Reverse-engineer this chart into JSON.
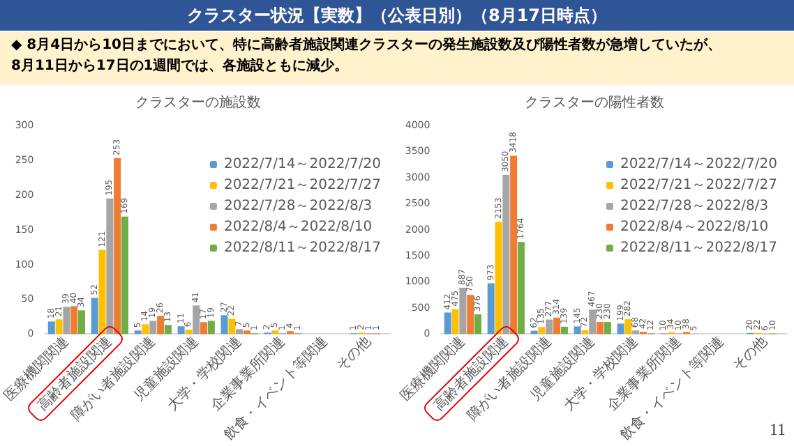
{
  "chart_data": [
    {
      "type": "other",
      "title": "クラスター状況【実数】（公表日別）（8月17日時点）",
      "annotations": [
        "◆ 8月4日から10日までにおいて、特に高齢者施設関連クラスターの発生施設数及び陽性者数が急増していたが、\n8月11日から17日の1週間では、各施設ともに減少。",
        "11"
      ]
    },
    {
      "type": "bar",
      "title": "クラスターの施設数",
      "categories": [
        "医療機関関連",
        "高齢者施設関連",
        "障がい者施設関連",
        "児童施設関連",
        "大学・学校関連",
        "企業事業所関連",
        "飲食・イベント等関連",
        "その他"
      ],
      "series": [
        {
          "name": "2022/7/14～2022/7/20",
          "color": "#5b9bd5",
          "values": [
            18,
            52,
            5,
            11,
            27,
            2,
            null,
            1
          ]
        },
        {
          "name": "2022/7/21～2022/7/27",
          "color": "#ffc000",
          "values": [
            21,
            121,
            14,
            6,
            22,
            5,
            null,
            2
          ]
        },
        {
          "name": "2022/7/28～2022/8/3",
          "color": "#a5a5a5",
          "values": [
            39,
            195,
            19,
            41,
            7,
            1,
            null,
            1
          ]
        },
        {
          "name": "2022/8/4～2022/8/10",
          "color": "#ed7d31",
          "values": [
            40,
            253,
            26,
            17,
            5,
            4,
            null,
            1
          ]
        },
        {
          "name": "2022/8/11～2022/8/17",
          "color": "#70ad47",
          "values": [
            34,
            169,
            13,
            19,
            1,
            1,
            null,
            null
          ]
        }
      ],
      "ylim": [
        0,
        300
      ],
      "yticks": [
        0,
        50,
        100,
        150,
        200,
        250,
        300
      ],
      "data_labels": true,
      "legend": "top right"
    },
    {
      "type": "bar",
      "title": "クラスターの陽性者数",
      "categories": [
        "医療機関関連",
        "高齢者施設関連",
        "障がい者施設関連",
        "児童施設関連",
        "大学・学校関連",
        "企業事業所関連",
        "飲食・イベント等関連",
        "その他"
      ],
      "series": [
        {
          "name": "2022/7/14～2022/7/20",
          "color": "#5b9bd5",
          "values": [
            412,
            973,
            62,
            145,
            199,
            10,
            null,
            20
          ]
        },
        {
          "name": "2022/7/21～2022/7/27",
          "color": "#ffc000",
          "values": [
            475,
            2153,
            135,
            72,
            282,
            34,
            null,
            22
          ]
        },
        {
          "name": "2022/7/28～2022/8/3",
          "color": "#a5a5a5",
          "values": [
            887,
            3050,
            277,
            467,
            68,
            10,
            null,
            6
          ]
        },
        {
          "name": "2022/8/4～2022/8/10",
          "color": "#ed7d31",
          "values": [
            750,
            3418,
            314,
            230,
            42,
            38,
            null,
            10
          ]
        },
        {
          "name": "2022/8/11～2022/8/17",
          "color": "#70ad47",
          "values": [
            376,
            1764,
            139,
            230,
            12,
            5,
            null,
            null
          ]
        }
      ],
      "ylim": [
        0,
        4000
      ],
      "yticks": [
        0,
        500,
        1000,
        1500,
        2000,
        2500,
        3000,
        3500,
        4000
      ],
      "data_labels": true,
      "legend": "top right"
    }
  ]
}
